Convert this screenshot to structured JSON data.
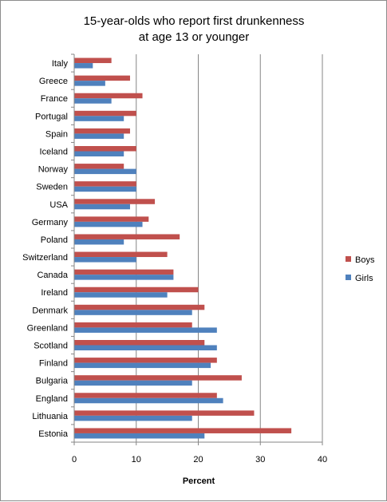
{
  "chart_data": {
    "type": "bar",
    "orientation": "horizontal",
    "title": "15-year-olds who report first drunkenness at age 13 or younger",
    "title_lines": [
      "15-year-olds who report first drunkenness",
      "at age 13 or younger"
    ],
    "xlabel": "Percent",
    "ylabel": "",
    "xlim": [
      0,
      40
    ],
    "xticks": [
      0,
      10,
      20,
      30,
      40
    ],
    "grid": true,
    "legend_position": "right",
    "categories": [
      "Italy",
      "Greece",
      "France",
      "Portugal",
      "Spain",
      "Iceland",
      "Norway",
      "Sweden",
      "USA",
      "Germany",
      "Poland",
      "Switzerland",
      "Canada",
      "Ireland",
      "Denmark",
      "Greenland",
      "Scotland",
      "Finland",
      "Bulgaria",
      "England",
      "Lithuania",
      "Estonia"
    ],
    "series": [
      {
        "name": "Boys",
        "color": "#c0504d",
        "values": [
          6,
          9,
          11,
          10,
          9,
          10,
          8,
          10,
          13,
          12,
          17,
          15,
          16,
          20,
          21,
          19,
          21,
          23,
          27,
          23,
          29,
          35
        ]
      },
      {
        "name": "Girls",
        "color": "#4f81bd",
        "values": [
          3,
          5,
          6,
          8,
          8,
          8,
          10,
          10,
          9,
          11,
          8,
          10,
          16,
          15,
          19,
          23,
          23,
          22,
          19,
          24,
          19,
          21
        ]
      }
    ]
  }
}
